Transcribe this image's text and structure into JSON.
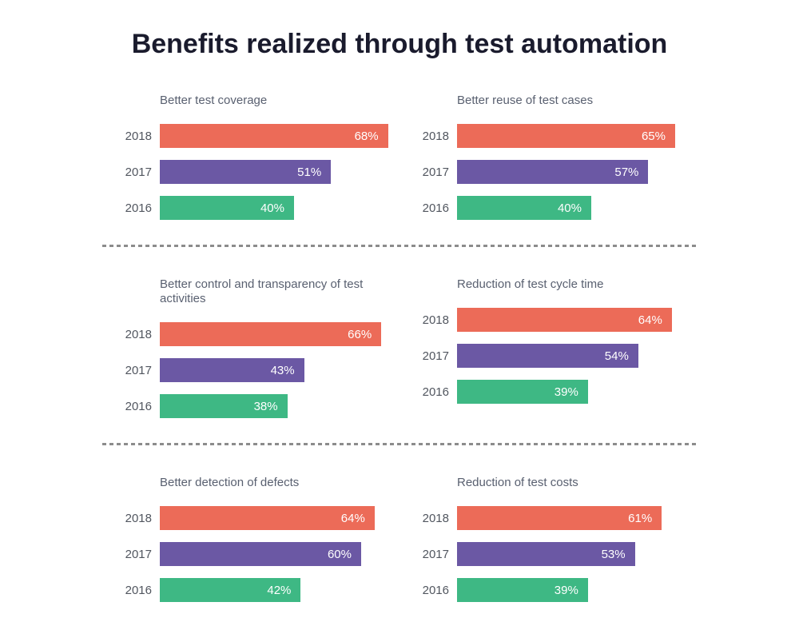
{
  "page": {
    "title": "Benefits realized through test automation"
  },
  "colors": {
    "background": "#FFFFFF",
    "title_text": "#1A1B2D",
    "chart_title_text": "#596070",
    "year_label_text": "#51565F",
    "value_label_text": "#FFFFFF",
    "separator": "#8C8C8C",
    "series_2018": "#EC6B58",
    "series_2017": "#6B58A4",
    "series_2016": "#3EB884"
  },
  "chart_data": [
    {
      "type": "bar",
      "orientation": "horizontal",
      "title": "Better test coverage",
      "categories": [
        "2018",
        "2017",
        "2016"
      ],
      "values": [
        68,
        51,
        40
      ],
      "value_labels": [
        "68%",
        "51%",
        "40%"
      ],
      "xlim": [
        0,
        100
      ],
      "grid": false,
      "legend": false
    },
    {
      "type": "bar",
      "orientation": "horizontal",
      "title": "Better reuse of test cases",
      "categories": [
        "2018",
        "2017",
        "2016"
      ],
      "values": [
        65,
        57,
        40
      ],
      "value_labels": [
        "65%",
        "57%",
        "40%"
      ],
      "xlim": [
        0,
        100
      ],
      "grid": false,
      "legend": false
    },
    {
      "type": "bar",
      "orientation": "horizontal",
      "title": "Better control and transparency of test activities",
      "categories": [
        "2018",
        "2017",
        "2016"
      ],
      "values": [
        66,
        43,
        38
      ],
      "value_labels": [
        "66%",
        "43%",
        "38%"
      ],
      "xlim": [
        0,
        100
      ],
      "grid": false,
      "legend": false
    },
    {
      "type": "bar",
      "orientation": "horizontal",
      "title": "Reduction of test cycle time",
      "categories": [
        "2018",
        "2017",
        "2016"
      ],
      "values": [
        64,
        54,
        39
      ],
      "value_labels": [
        "64%",
        "54%",
        "39%"
      ],
      "xlim": [
        0,
        100
      ],
      "grid": false,
      "legend": false
    },
    {
      "type": "bar",
      "orientation": "horizontal",
      "title": "Better detection of defects",
      "categories": [
        "2018",
        "2017",
        "2016"
      ],
      "values": [
        64,
        60,
        42
      ],
      "value_labels": [
        "64%",
        "60%",
        "42%"
      ],
      "xlim": [
        0,
        100
      ],
      "grid": false,
      "legend": false
    },
    {
      "type": "bar",
      "orientation": "horizontal",
      "title": "Reduction of test costs",
      "categories": [
        "2018",
        "2017",
        "2016"
      ],
      "values": [
        61,
        53,
        39
      ],
      "value_labels": [
        "61%",
        "53%",
        "39%"
      ],
      "xlim": [
        0,
        100
      ],
      "grid": false,
      "legend": false
    }
  ]
}
